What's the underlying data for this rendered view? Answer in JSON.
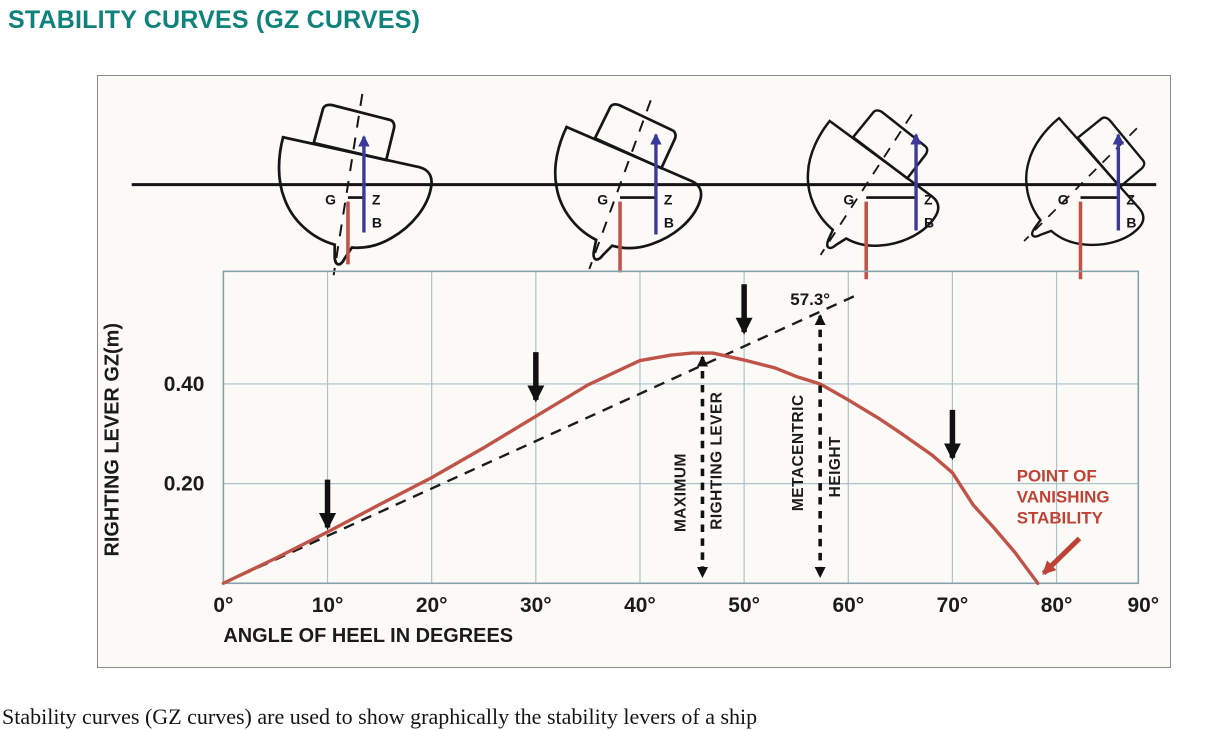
{
  "page": {
    "title": "STABILITY CURVES (GZ CURVES)",
    "body_text": "Stability curves (GZ curves) are used to show graphically the stability levers of a ship"
  },
  "figure": {
    "description": "Four heeled ship cross-sections above a GZ righting-lever curve",
    "ship_labels": {
      "g": "G",
      "z": "Z",
      "b": "B"
    },
    "colors": {
      "title_teal": "#0E827B",
      "curve_red": "#C0544A",
      "annotation_red": "#C04237",
      "buoyancy_arrow_blue": "#3B3A9C",
      "grid_teal": "#ACC2C7"
    }
  },
  "chart_data": {
    "type": "line",
    "title": "",
    "xlabel": "ANGLE OF HEEL IN DEGREES",
    "ylabel": "RIGHTING LEVER GZ(m)",
    "xlim": [
      0,
      90
    ],
    "ylim": [
      0,
      0.62
    ],
    "grid": true,
    "x_ticks": [
      0,
      10,
      20,
      30,
      40,
      50,
      60,
      70,
      80,
      90
    ],
    "x_tick_labels": [
      "0°",
      "10°",
      "20°",
      "30°",
      "40°",
      "50°",
      "60°",
      "70°",
      "80°",
      "90°"
    ],
    "y_tick_values": [
      0.2,
      0.4
    ],
    "y_tick_labels": [
      "0.20",
      "0.40"
    ],
    "y_grid": [
      0.2,
      0.4
    ],
    "series": [
      {
        "name": "GZ righting lever curve",
        "color": "#C0544A",
        "x": [
          0,
          5,
          10,
          15,
          20,
          25,
          30,
          35,
          40,
          43,
          45,
          47,
          50,
          53,
          55,
          57.3,
          60,
          63,
          65,
          68,
          70,
          72,
          74,
          76,
          78.2
        ],
        "y": [
          0,
          0.05,
          0.103,
          0.158,
          0.212,
          0.272,
          0.335,
          0.398,
          0.447,
          0.458,
          0.462,
          0.462,
          0.448,
          0.432,
          0.415,
          0.4,
          0.368,
          0.33,
          0.302,
          0.258,
          0.222,
          0.157,
          0.111,
          0.062,
          0
        ]
      }
    ],
    "initial_slope_line": {
      "style": "dashed",
      "from_deg": 0,
      "to_deg": 61,
      "gm": 0.545,
      "label": "57.3°",
      "label_at_deg": 57.3
    },
    "annotations": {
      "max_righting_lever": {
        "label_lines": [
          "MAXIMUM",
          "RIGHTING LEVER"
        ],
        "at_deg": 46,
        "value": 0.462
      },
      "metacentric_height": {
        "label_lines": [
          "METACENTRIC",
          "HEIGHT"
        ],
        "at_deg": 57.3,
        "value": 0.545
      },
      "vanishing": {
        "label_lines": [
          "POINT OF",
          "VANISHING",
          "STABILITY"
        ],
        "at_deg": 78.2
      },
      "heel_arrows": [
        {
          "deg": 10,
          "tip_value": 0.112
        },
        {
          "deg": 30,
          "tip_value": 0.368
        },
        {
          "deg": 50,
          "tip_value": 0.504
        },
        {
          "deg": 70,
          "tip_value": 0.252
        }
      ]
    }
  }
}
